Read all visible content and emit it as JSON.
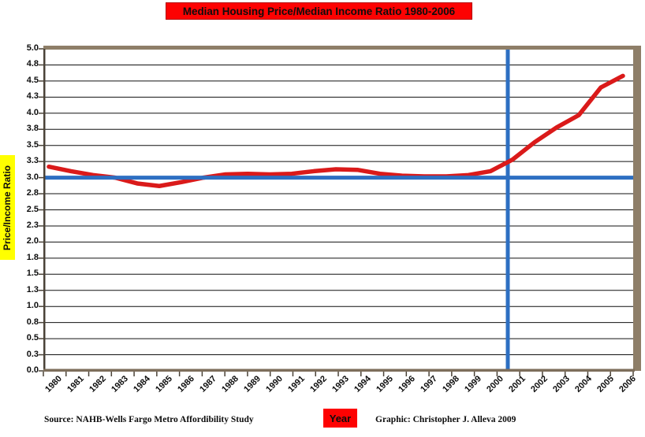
{
  "title": {
    "text": "Median Housing Price/Median Income Ratio 1980-2006",
    "bg_color": "#fd0202"
  },
  "y_axis": {
    "label": "Price/Income Ratio",
    "label_bg_color": "#ffff00",
    "ticks": [
      "5.0",
      "4.8",
      "4.5",
      "4.3",
      "4.0",
      "3.8",
      "3.5",
      "3.3",
      "3.0",
      "2.8",
      "2.5",
      "2.3",
      "2.0",
      "1.8",
      "1.5",
      "1.3",
      "1.0",
      "0.8",
      "0.5",
      "0.3",
      "0.0"
    ]
  },
  "x_axis": {
    "label": "Year",
    "label_bg_color": "#fd0202",
    "ticks": [
      "1980",
      "1981",
      "1982",
      "1983",
      "1984",
      "1985",
      "1986",
      "1987",
      "1988",
      "1989",
      "1990",
      "1991",
      "1992",
      "1993",
      "1994",
      "1995",
      "1996",
      "1997",
      "1998",
      "1999",
      "2000",
      "2001",
      "2002",
      "2003",
      "2004",
      "2005",
      "2006"
    ]
  },
  "footer": {
    "source": "Source: NAHB-Wells Fargo Metro Affordibility Study",
    "credit": "Graphic: Christopher J.  Alleva 2009"
  },
  "colors": {
    "data_line": "#da1a1a",
    "reference_line": "#2d6fc2",
    "grid_line": "#111111",
    "frame": "#8e7e68",
    "axis_dark": "#4a4237",
    "bottom_axis": "#7d6e5b",
    "title_bg": "#fd0202",
    "ylabel_bg": "#ffff00"
  },
  "chart_data": {
    "type": "line",
    "title": "Median Housing Price/Median Income Ratio 1980-2006",
    "xlabel": "Year",
    "ylabel": "Price/Income Ratio",
    "ylim": [
      0,
      5
    ],
    "ytick_interval": 0.25,
    "grid": "horizontal",
    "legend": "none",
    "categories": [
      1980,
      1981,
      1982,
      1983,
      1984,
      1985,
      1986,
      1987,
      1988,
      1989,
      1990,
      1991,
      1992,
      1993,
      1994,
      1995,
      1996,
      1997,
      1998,
      1999,
      2000,
      2001,
      2002,
      2003,
      2004,
      2005,
      2006
    ],
    "series": [
      {
        "name": "Median housing price to median income ratio",
        "color": "#da1a1a",
        "values": [
          3.17,
          3.1,
          3.04,
          3.0,
          2.91,
          2.87,
          2.93,
          3.0,
          3.05,
          3.06,
          3.05,
          3.06,
          3.1,
          3.13,
          3.12,
          3.06,
          3.03,
          3.02,
          3.02,
          3.04,
          3.1,
          3.28,
          3.55,
          3.78,
          3.97,
          4.4,
          4.58
        ]
      }
    ],
    "reference_lines": [
      {
        "orientation": "horizontal",
        "value": 3.0,
        "color": "#2d6fc2"
      },
      {
        "orientation": "vertical",
        "at_category": 2001,
        "color": "#2d6fc2"
      }
    ]
  }
}
